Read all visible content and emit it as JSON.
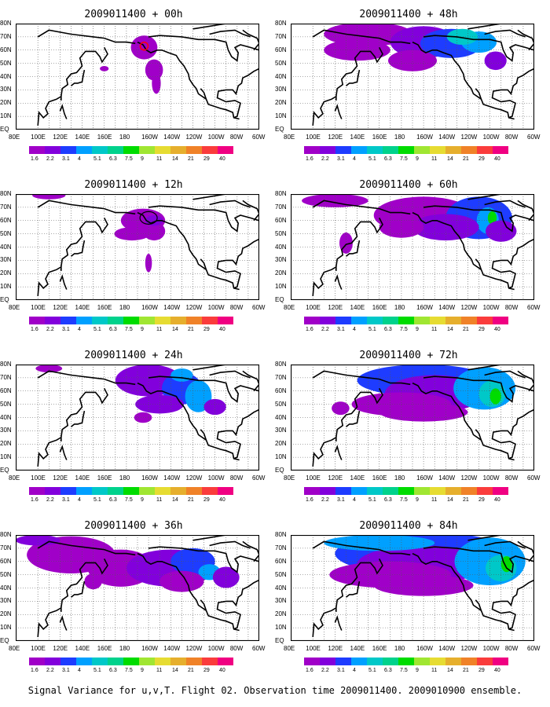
{
  "panels": [
    {
      "title": "2009011400 + 00h",
      "level": 0
    },
    {
      "title": "2009011400 + 12h",
      "level": 1
    },
    {
      "title": "2009011400 + 24h",
      "level": 2
    },
    {
      "title": "2009011400 + 36h",
      "level": 3
    },
    {
      "title": "2009011400 + 48h",
      "level": 4
    },
    {
      "title": "2009011400 + 60h",
      "level": 5
    },
    {
      "title": "2009011400 + 72h",
      "level": 6
    },
    {
      "title": "2009011400 + 84h",
      "level": 7
    }
  ],
  "lat_labels": [
    "80N",
    "70N",
    "60N",
    "50N",
    "40N",
    "30N",
    "20N",
    "10N",
    "EQ"
  ],
  "lon_labels": [
    "80E",
    "100E",
    "120E",
    "140E",
    "160E",
    "180",
    "160W",
    "140W",
    "120W",
    "100W",
    "80W",
    "60W"
  ],
  "colorbar": {
    "labels": [
      "1.6",
      "2.2",
      "3.1",
      "4",
      "5.1",
      "6.3",
      "7.5",
      "9",
      "11",
      "14",
      "21",
      "29",
      "40"
    ],
    "colors": [
      "#a000c8",
      "#8200dc",
      "#1e3cff",
      "#00a0ff",
      "#00c8c8",
      "#00d28c",
      "#00dc00",
      "#a0e632",
      "#e6dc32",
      "#e6af2d",
      "#f08228",
      "#fa3c3c",
      "#f00082"
    ]
  },
  "caption": "Signal Variance for u,v,T. Flight 02. Observation time 2009011400. 2009010900 ensemble."
}
